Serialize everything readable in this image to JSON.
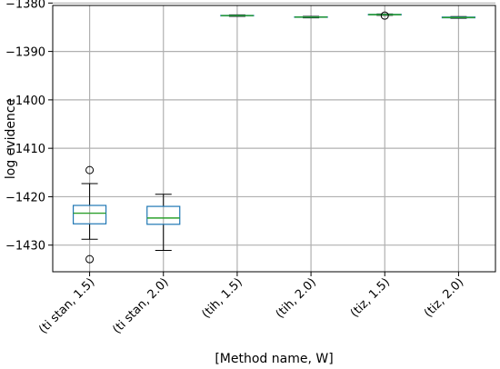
{
  "chart_data": {
    "type": "box",
    "xlabel": "[Method name, W]",
    "ylabel": "log evidence",
    "ylim": [
      -1435.5,
      -1380.5
    ],
    "yticks": [
      -1380,
      -1390,
      -1400,
      -1410,
      -1420,
      -1430
    ],
    "ytick_labels": [
      "−1380",
      "−1390",
      "−1400",
      "−1410",
      "−1420",
      "−1430"
    ],
    "grid": true,
    "categories": [
      "(ti stan, 1.5)",
      "(ti stan, 2.0)",
      "(tih, 1.5)",
      "(tih, 2.0)",
      "(tiz, 1.5)",
      "(tiz, 2.0)"
    ],
    "boxes": [
      {
        "whislo": -1428.8,
        "q1": -1425.6,
        "med": -1423.4,
        "q3": -1421.8,
        "whishi": -1417.3,
        "fliers": [
          -1414.5,
          -1432.9
        ]
      },
      {
        "whislo": -1431.1,
        "q1": -1425.7,
        "med": -1424.4,
        "q3": -1422.0,
        "whishi": -1419.5,
        "fliers": []
      },
      {
        "whislo": -1382.75,
        "q1": -1382.65,
        "med": -1382.6,
        "q3": -1382.55,
        "whishi": -1382.45,
        "fliers": []
      },
      {
        "whislo": -1383.05,
        "q1": -1382.95,
        "med": -1382.9,
        "q3": -1382.85,
        "whishi": -1382.75,
        "fliers": []
      },
      {
        "whislo": -1382.55,
        "q1": -1382.45,
        "med": -1382.4,
        "q3": -1382.35,
        "whishi": -1382.25,
        "fliers": [
          -1382.6
        ]
      },
      {
        "whislo": -1383.15,
        "q1": -1383.05,
        "med": -1383.0,
        "q3": -1382.9,
        "whishi": -1382.8,
        "fliers": []
      }
    ],
    "colors": {
      "box": "#1f77b4",
      "median": "#2ca02c",
      "whisker": "#000000",
      "flier": "#000000",
      "grid": "#b0b0b0"
    }
  }
}
